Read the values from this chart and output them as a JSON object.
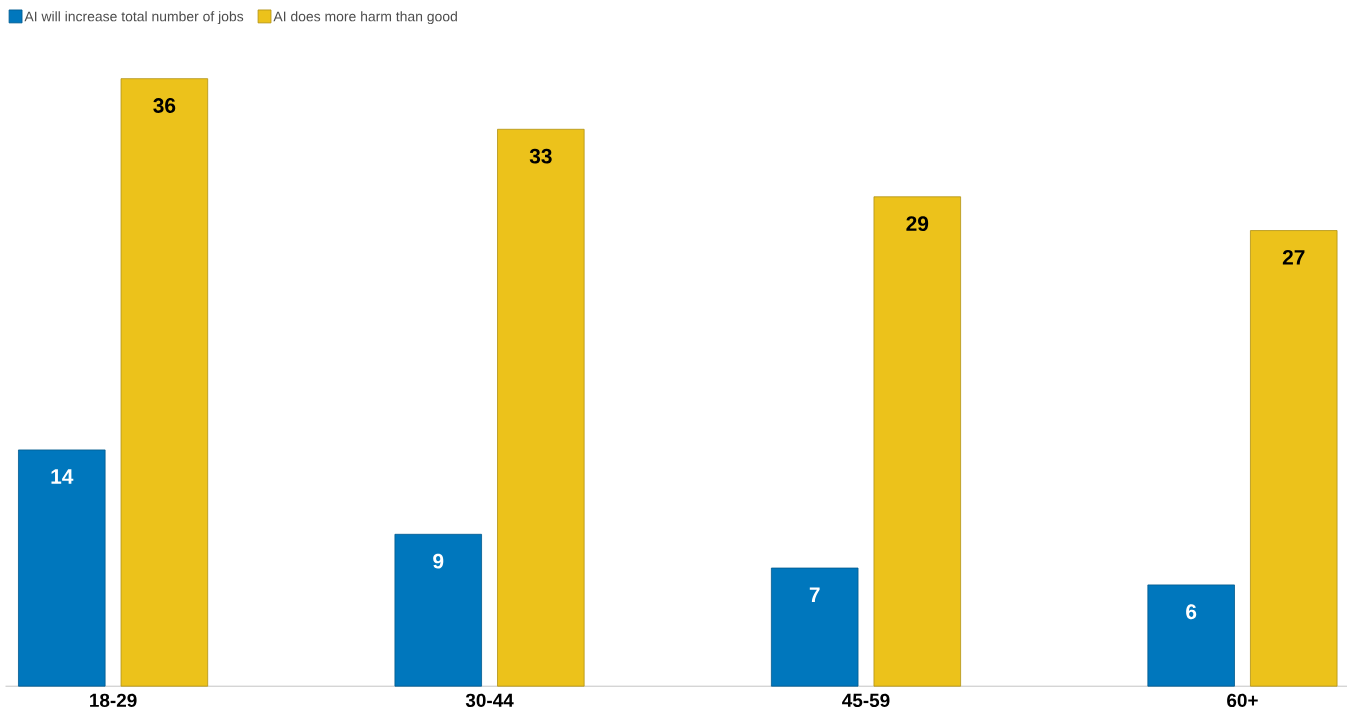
{
  "chart_data": {
    "type": "bar",
    "categories": [
      "18-29",
      "30-44",
      "45-59",
      "60+"
    ],
    "series": [
      {
        "name": "AI will increase total number of jobs",
        "color": "#0077bd",
        "values": [
          14,
          9,
          7,
          6
        ]
      },
      {
        "name": "AI does more harm than good",
        "color": "#ecc21b",
        "values": [
          36,
          33,
          29,
          27
        ]
      }
    ],
    "data_labels": true,
    "legend": "top left"
  }
}
